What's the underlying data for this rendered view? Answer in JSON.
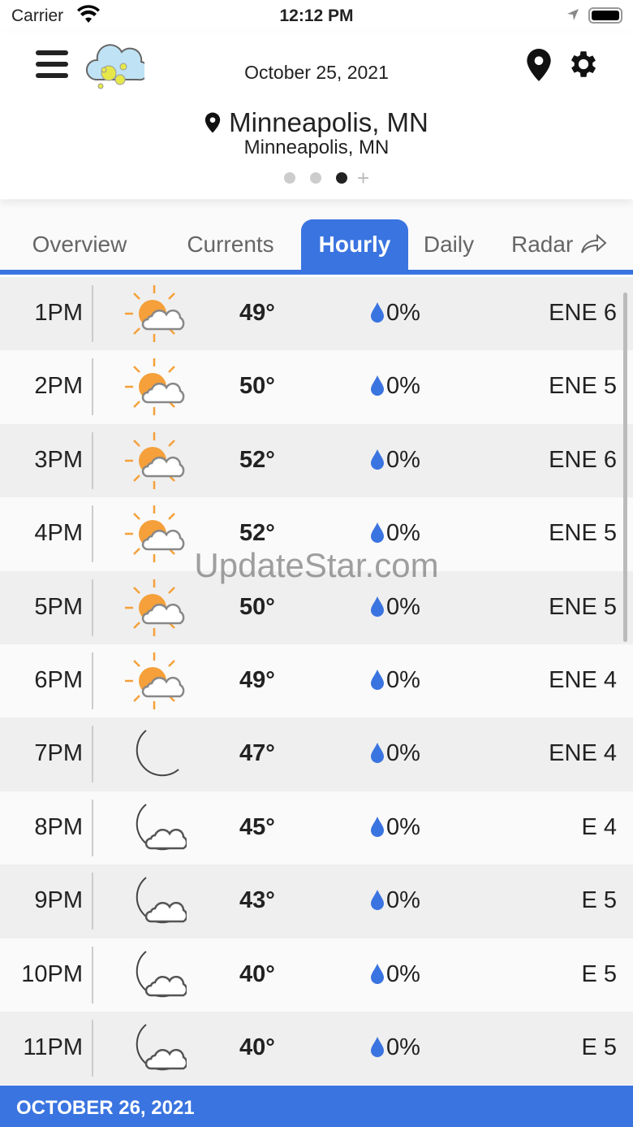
{
  "status": {
    "carrier": "Carrier",
    "time": "12:12 PM"
  },
  "header": {
    "date": "October 25, 2021",
    "city": "Minneapolis, MN",
    "subtitle": "Minneapolis, MN",
    "page_count": 3,
    "active_page": 3
  },
  "tabs": [
    {
      "label": "Overview"
    },
    {
      "label": "Currents"
    },
    {
      "label": "Hourly",
      "active": true
    },
    {
      "label": "Daily"
    },
    {
      "label": "Radar"
    }
  ],
  "hours": [
    {
      "time": "1PM",
      "icon": "partly-sunny",
      "temp": "49°",
      "precip": "0%",
      "wind": "ENE 6"
    },
    {
      "time": "2PM",
      "icon": "partly-sunny",
      "temp": "50°",
      "precip": "0%",
      "wind": "ENE 5"
    },
    {
      "time": "3PM",
      "icon": "partly-sunny",
      "temp": "52°",
      "precip": "0%",
      "wind": "ENE 6"
    },
    {
      "time": "4PM",
      "icon": "partly-sunny",
      "temp": "52°",
      "precip": "0%",
      "wind": "ENE 5"
    },
    {
      "time": "5PM",
      "icon": "partly-sunny",
      "temp": "50°",
      "precip": "0%",
      "wind": "ENE 5"
    },
    {
      "time": "6PM",
      "icon": "partly-sunny",
      "temp": "49°",
      "precip": "0%",
      "wind": "ENE 4"
    },
    {
      "time": "7PM",
      "icon": "clear-night",
      "temp": "47°",
      "precip": "0%",
      "wind": "ENE 4"
    },
    {
      "time": "8PM",
      "icon": "partly-cloudy-night",
      "temp": "45°",
      "precip": "0%",
      "wind": "E 4"
    },
    {
      "time": "9PM",
      "icon": "partly-cloudy-night",
      "temp": "43°",
      "precip": "0%",
      "wind": "E 5"
    },
    {
      "time": "10PM",
      "icon": "partly-cloudy-night",
      "temp": "40°",
      "precip": "0%",
      "wind": "E 5"
    },
    {
      "time": "11PM",
      "icon": "partly-cloudy-night",
      "temp": "40°",
      "precip": "0%",
      "wind": "E 5"
    }
  ],
  "footer": {
    "next_day": "OCTOBER 26, 2021"
  },
  "watermark": "UpdateStar.com",
  "colors": {
    "accent": "#3a74e0",
    "sun": "#f5a03a",
    "moon": "#f7d36a",
    "drop": "#3a74e0"
  }
}
